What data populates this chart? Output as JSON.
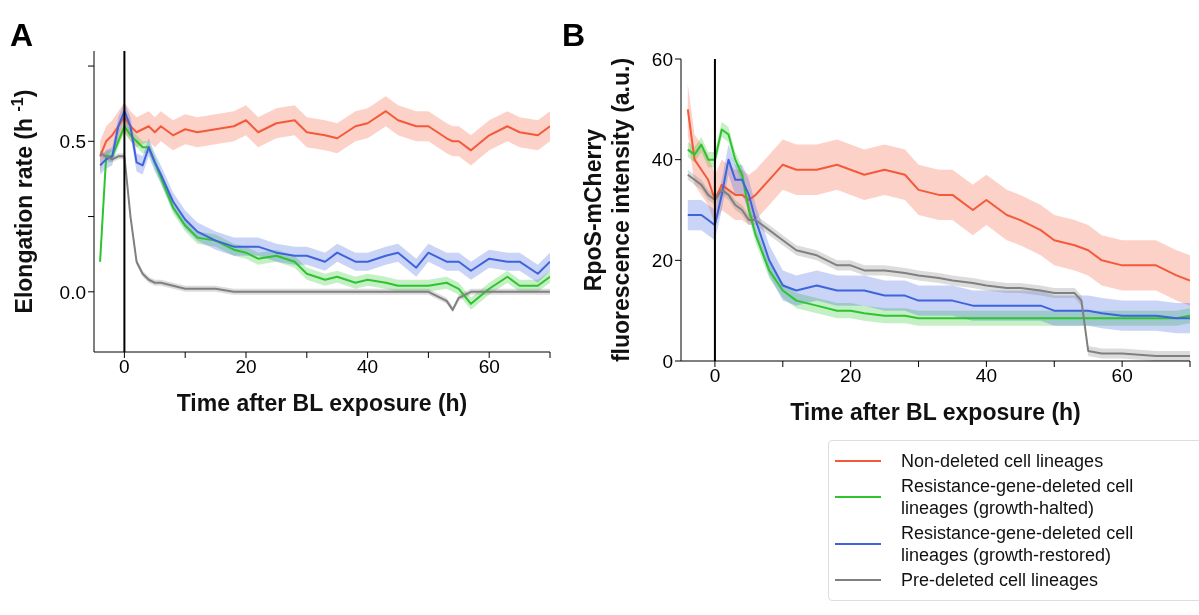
{
  "chart_data": [
    {
      "type": "line",
      "title": "A",
      "xlabel": "Time after BL exposure (h)",
      "ylabel": "Elongation rate (h $^{-1}$)",
      "marker": "none",
      "xlim": [
        -5,
        70
      ],
      "xticks": [
        0,
        {
          "value": 10,
          "label": null
        },
        20,
        {
          "value": 30,
          "label": null
        },
        40,
        {
          "value": 50,
          "label": null
        },
        60,
        {
          "value": 70,
          "label": null
        }
      ],
      "ylim": [
        -0.2,
        0.8
      ],
      "yticks": [
        {
          "value": 0,
          "label": "0.0"
        },
        {
          "value": 0.25,
          "label": null
        },
        {
          "value": 0.5,
          "label": "0.5"
        },
        {
          "value": 0.75,
          "label": null
        }
      ],
      "ref_lines": [
        {
          "axis": "x",
          "value": 0,
          "color": "#000000"
        }
      ],
      "x": [
        -4,
        -3,
        -2,
        -1,
        0,
        1,
        2,
        3,
        4,
        5,
        6,
        8,
        10,
        12,
        15,
        18,
        20,
        22,
        25,
        28,
        30,
        33,
        35,
        38,
        40,
        43,
        45,
        48,
        50,
        53,
        54,
        55,
        57,
        60,
        63,
        65,
        68,
        70
      ],
      "series": [
        {
          "color": "#f4593a",
          "values": [
            0.45,
            0.5,
            0.52,
            0.55,
            0.58,
            0.55,
            0.53,
            0.54,
            0.55,
            0.53,
            0.55,
            0.52,
            0.54,
            0.53,
            0.54,
            0.55,
            0.57,
            0.53,
            0.56,
            0.57,
            0.53,
            0.52,
            0.51,
            0.55,
            0.56,
            0.6,
            0.57,
            0.55,
            0.55,
            0.51,
            0.5,
            0.5,
            0.47,
            0.52,
            0.55,
            0.53,
            0.52,
            0.55
          ],
          "lower": [
            0.4,
            0.45,
            0.47,
            0.5,
            0.53,
            0.5,
            0.48,
            0.49,
            0.5,
            0.48,
            0.5,
            0.47,
            0.49,
            0.48,
            0.49,
            0.5,
            0.52,
            0.48,
            0.51,
            0.52,
            0.48,
            0.47,
            0.46,
            0.5,
            0.51,
            0.55,
            0.52,
            0.5,
            0.5,
            0.46,
            0.45,
            0.45,
            0.42,
            0.47,
            0.5,
            0.48,
            0.47,
            0.5
          ],
          "upper": [
            0.5,
            0.55,
            0.57,
            0.6,
            0.63,
            0.6,
            0.58,
            0.59,
            0.6,
            0.58,
            0.6,
            0.57,
            0.59,
            0.58,
            0.59,
            0.6,
            0.62,
            0.58,
            0.61,
            0.62,
            0.58,
            0.57,
            0.56,
            0.6,
            0.61,
            0.65,
            0.62,
            0.6,
            0.6,
            0.56,
            0.55,
            0.55,
            0.52,
            0.57,
            0.6,
            0.58,
            0.57,
            0.6
          ]
        },
        {
          "color": "#2ec42e",
          "values": [
            0.1,
            0.45,
            0.45,
            0.5,
            0.55,
            0.52,
            0.5,
            0.48,
            0.48,
            0.43,
            0.38,
            0.28,
            0.22,
            0.18,
            0.17,
            0.14,
            0.13,
            0.11,
            0.12,
            0.1,
            0.06,
            0.04,
            0.05,
            0.03,
            0.04,
            0.03,
            0.02,
            0.02,
            0.02,
            0.03,
            0.02,
            0.01,
            -0.04,
            0.01,
            0.05,
            0.02,
            0.02,
            0.05
          ],
          "lower": [
            0.08,
            0.43,
            0.43,
            0.48,
            0.53,
            0.5,
            0.48,
            0.46,
            0.46,
            0.41,
            0.36,
            0.26,
            0.2,
            0.16,
            0.15,
            0.12,
            0.11,
            0.09,
            0.1,
            0.08,
            0.04,
            0.02,
            0.03,
            0.01,
            0.02,
            0.01,
            0,
            0,
            0,
            0.01,
            0,
            -0.01,
            -0.06,
            -0.01,
            0.03,
            0,
            0,
            0.03
          ],
          "upper": [
            0.12,
            0.47,
            0.47,
            0.52,
            0.57,
            0.54,
            0.52,
            0.5,
            0.5,
            0.45,
            0.4,
            0.3,
            0.24,
            0.2,
            0.19,
            0.16,
            0.15,
            0.13,
            0.14,
            0.12,
            0.08,
            0.06,
            0.07,
            0.05,
            0.06,
            0.05,
            0.04,
            0.04,
            0.04,
            0.05,
            0.04,
            0.03,
            -0.02,
            0.03,
            0.07,
            0.04,
            0.04,
            0.07
          ]
        },
        {
          "color": "#3e63dd",
          "values": [
            0.42,
            0.44,
            0.45,
            0.55,
            0.6,
            0.55,
            0.43,
            0.42,
            0.48,
            0.43,
            0.39,
            0.3,
            0.24,
            0.2,
            0.17,
            0.15,
            0.15,
            0.15,
            0.13,
            0.12,
            0.12,
            0.1,
            0.13,
            0.1,
            0.1,
            0.12,
            0.13,
            0.08,
            0.13,
            0.1,
            0.1,
            0.1,
            0.07,
            0.11,
            0.1,
            0.1,
            0.06,
            0.1
          ],
          "lower": [
            0.39,
            0.41,
            0.42,
            0.52,
            0.57,
            0.52,
            0.4,
            0.39,
            0.45,
            0.4,
            0.36,
            0.27,
            0.21,
            0.17,
            0.14,
            0.12,
            0.12,
            0.12,
            0.1,
            0.09,
            0.09,
            0.07,
            0.1,
            0.07,
            0.07,
            0.09,
            0.1,
            0.05,
            0.1,
            0.07,
            0.07,
            0.07,
            0.04,
            0.08,
            0.07,
            0.07,
            0.03,
            0.07
          ],
          "upper": [
            0.45,
            0.47,
            0.48,
            0.58,
            0.63,
            0.58,
            0.46,
            0.45,
            0.51,
            0.46,
            0.42,
            0.33,
            0.27,
            0.23,
            0.2,
            0.18,
            0.18,
            0.18,
            0.16,
            0.15,
            0.15,
            0.13,
            0.16,
            0.13,
            0.13,
            0.15,
            0.16,
            0.11,
            0.16,
            0.13,
            0.13,
            0.13,
            0.1,
            0.14,
            0.13,
            0.13,
            0.09,
            0.13
          ]
        },
        {
          "color": "#808080",
          "values": [
            0.46,
            0.45,
            0.44,
            0.45,
            0.45,
            0.25,
            0.1,
            0.06,
            0.04,
            0.03,
            0.03,
            0.02,
            0.01,
            0.01,
            0.01,
            0,
            0,
            0,
            0,
            0,
            0,
            0,
            0,
            0,
            0,
            0,
            0,
            0,
            0,
            -0.03,
            -0.06,
            -0.02,
            0,
            0,
            0,
            0,
            0,
            0
          ],
          "lower": [
            0.45,
            0.44,
            0.43,
            0.44,
            0.44,
            0.24,
            0.09,
            0.05,
            0.03,
            0.02,
            0.02,
            0.01,
            0,
            0,
            0,
            -0.01,
            -0.01,
            -0.01,
            -0.01,
            -0.01,
            -0.01,
            -0.01,
            -0.01,
            -0.01,
            -0.01,
            -0.01,
            -0.01,
            -0.01,
            -0.01,
            -0.04,
            -0.07,
            -0.03,
            -0.01,
            -0.01,
            -0.01,
            -0.01,
            -0.01,
            -0.01
          ],
          "upper": [
            0.47,
            0.46,
            0.45,
            0.46,
            0.46,
            0.26,
            0.11,
            0.07,
            0.05,
            0.04,
            0.04,
            0.03,
            0.02,
            0.02,
            0.02,
            0.01,
            0.01,
            0.01,
            0.01,
            0.01,
            0.01,
            0.01,
            0.01,
            0.01,
            0.01,
            0.01,
            0.01,
            0.01,
            0.01,
            -0.02,
            -0.05,
            -0.01,
            0.01,
            0.01,
            0.01,
            0.01,
            0.01,
            0.01
          ]
        }
      ]
    },
    {
      "type": "line",
      "title": "B",
      "xlabel": "Time after BL exposure (h)",
      "ylabel": "RpoS-mCherry\nfluorescence intensity (a.u.)",
      "marker": "none",
      "legend": "bottom right",
      "xlim": [
        -5,
        70
      ],
      "xticks": [
        0,
        {
          "value": 10,
          "label": null
        },
        20,
        {
          "value": 30,
          "label": null
        },
        40,
        {
          "value": 50,
          "label": null
        },
        60,
        {
          "value": 70,
          "label": null
        }
      ],
      "ylim": [
        0,
        60
      ],
      "yticks": [
        0,
        20,
        40,
        60
      ],
      "ref_lines": [
        {
          "axis": "x",
          "value": 0,
          "color": "#000000"
        }
      ],
      "x": [
        -4,
        -3,
        -2,
        -1,
        0,
        1,
        2,
        3,
        4,
        5,
        6,
        8,
        10,
        12,
        15,
        18,
        20,
        22,
        25,
        28,
        30,
        33,
        35,
        38,
        40,
        43,
        45,
        48,
        50,
        53,
        54,
        55,
        57,
        60,
        63,
        65,
        68,
        70
      ],
      "series": [
        {
          "name": "Non-deleted cell lineages",
          "color": "#f4593a",
          "values": [
            50,
            40,
            38,
            36,
            32,
            35,
            34,
            33,
            33,
            32,
            33,
            36,
            39,
            38,
            38,
            39,
            38,
            37,
            38,
            37,
            34,
            33,
            33,
            30,
            32,
            29,
            28,
            26,
            24,
            23,
            22.5,
            22,
            20,
            19,
            19,
            19,
            17,
            16
          ],
          "lower": [
            45,
            35,
            33,
            31,
            27,
            30,
            29,
            28,
            28,
            27,
            28,
            31,
            34,
            33,
            33,
            34,
            33,
            32,
            33,
            32,
            29,
            28,
            28,
            25,
            27,
            24,
            23,
            21,
            19,
            18,
            17.5,
            17,
            15,
            14,
            14,
            14,
            12,
            11
          ],
          "upper": [
            55,
            45,
            43,
            41,
            37,
            40,
            39,
            38,
            38,
            37,
            38,
            41,
            44,
            43,
            43,
            44,
            43,
            42,
            43,
            42,
            39,
            38,
            38,
            35,
            37,
            34,
            33,
            31,
            29,
            28,
            27.5,
            27,
            25,
            24,
            24,
            24,
            22,
            21
          ]
        },
        {
          "name": "Resistance-gene-deleted cell lineages (growth-halted)",
          "color": "#2ec42e",
          "values": [
            42,
            41,
            43,
            40,
            40,
            46,
            45,
            40,
            37,
            30,
            25,
            18,
            14,
            12,
            11,
            10,
            10,
            9.5,
            9,
            9,
            8.5,
            8.5,
            8.5,
            8.5,
            8.5,
            8.5,
            8.5,
            8.5,
            8.5,
            8.5,
            8.5,
            8.5,
            8.5,
            8.5,
            8.5,
            8.5,
            8.5,
            9
          ],
          "lower": [
            40.5,
            39.5,
            41.5,
            38.5,
            38.5,
            44.5,
            43.5,
            38.5,
            35.5,
            28.5,
            23.5,
            16.5,
            12.5,
            10.5,
            9.5,
            8.5,
            8.5,
            8,
            7.5,
            7.5,
            7,
            7,
            7,
            7,
            7,
            7,
            7,
            7,
            7,
            7,
            7,
            7,
            7,
            7,
            7,
            7,
            7,
            7.5
          ],
          "upper": [
            43.5,
            42.5,
            44.5,
            41.5,
            41.5,
            47.5,
            46.5,
            41.5,
            38.5,
            31.5,
            26.5,
            19.5,
            15.5,
            13.5,
            12.5,
            11.5,
            11.5,
            11,
            10.5,
            10.5,
            10,
            10,
            10,
            10,
            10,
            10,
            10,
            10,
            10,
            10,
            10,
            10,
            10,
            10,
            10,
            10,
            10,
            10.5
          ]
        },
        {
          "name": "Resistance-gene-deleted cell lineages (growth-restored)",
          "color": "#3e63dd",
          "values": [
            29,
            29,
            29,
            28,
            27,
            33,
            40,
            36,
            36,
            33,
            28,
            20,
            15,
            14,
            15,
            14,
            14,
            14,
            13,
            13,
            12,
            12,
            12,
            11,
            11,
            11,
            11,
            11,
            10,
            10,
            10,
            10,
            9.5,
            9,
            9,
            9,
            8.5,
            8.5
          ],
          "lower": [
            26,
            26,
            26,
            25,
            24,
            30,
            37,
            33,
            33,
            30,
            25,
            17,
            12,
            11,
            12,
            11,
            11,
            11,
            10,
            10,
            9,
            9,
            9,
            8,
            8,
            8,
            8,
            8,
            7,
            7,
            7,
            7,
            6.5,
            6,
            6,
            6,
            5.5,
            5.5
          ],
          "upper": [
            32,
            32,
            32,
            31,
            30,
            36,
            43,
            39,
            39,
            36,
            31,
            23,
            18,
            17,
            18,
            17,
            17,
            17,
            16,
            16,
            15,
            15,
            15,
            14,
            14,
            14,
            14,
            14,
            13,
            13,
            13,
            13,
            12.5,
            12,
            12,
            12,
            11.5,
            11.5
          ]
        },
        {
          "name": "Pre-deleted cell lineages",
          "color": "#808080",
          "values": [
            37,
            36,
            35,
            33,
            32,
            34,
            33,
            31,
            30,
            28,
            28,
            26,
            24,
            22,
            21,
            19,
            19,
            18,
            18,
            17.5,
            17,
            16.5,
            16,
            15.5,
            15,
            14.5,
            14.5,
            14,
            13.5,
            13.5,
            12,
            2,
            1.5,
            1.5,
            1.2,
            1,
            1,
            1
          ],
          "lower": [
            36,
            35,
            34,
            32,
            31,
            33,
            32,
            30,
            29,
            27,
            27,
            25,
            23,
            21,
            20,
            18,
            18,
            17,
            17,
            16.5,
            16,
            15.5,
            15,
            14.5,
            14,
            13.5,
            13.5,
            13,
            12.5,
            12.5,
            11,
            1,
            0.5,
            0.5,
            0.2,
            0,
            0,
            0
          ],
          "upper": [
            38,
            37,
            36,
            34,
            33,
            35,
            34,
            32,
            31,
            29,
            29,
            27,
            25,
            23,
            22,
            20,
            20,
            19,
            19,
            18.5,
            18,
            17.5,
            17,
            16.5,
            16,
            15.5,
            15.5,
            15,
            14.5,
            14.5,
            13,
            3,
            2.5,
            2.5,
            2.2,
            2,
            2,
            2
          ]
        }
      ]
    }
  ]
}
